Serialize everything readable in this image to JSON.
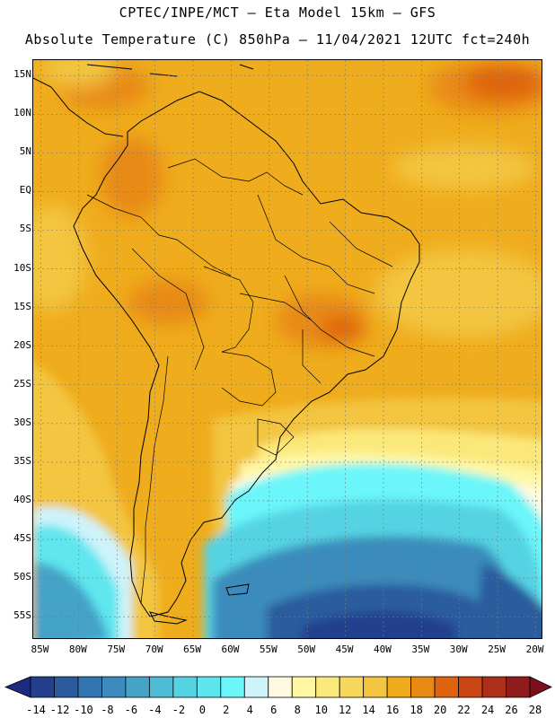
{
  "header": {
    "line1": "CPTEC/INPE/MCT –  Eta Model 15km – GFS",
    "line2": "Absolute Temperature (C) 850hPa – 11/04/2021 12UTC fct=240h"
  },
  "map": {
    "lon_range": [
      -86,
      -19
    ],
    "lat_range": [
      -58,
      17
    ],
    "lat_labels": [
      "15N",
      "10N",
      "5N",
      "EQ",
      "5S",
      "10S",
      "15S",
      "20S",
      "25S",
      "30S",
      "35S",
      "40S",
      "45S",
      "50S",
      "55S"
    ],
    "lat_values": [
      15,
      10,
      5,
      0,
      -5,
      -10,
      -15,
      -20,
      -25,
      -30,
      -35,
      -40,
      -45,
      -50,
      -55
    ],
    "lon_labels": [
      "85W",
      "80W",
      "75W",
      "70W",
      "65W",
      "60W",
      "55W",
      "50W",
      "45W",
      "40W",
      "35W",
      "30W",
      "25W",
      "20W"
    ],
    "lon_values": [
      -85,
      -80,
      -75,
      -70,
      -65,
      -60,
      -55,
      -50,
      -45,
      -40,
      -35,
      -30,
      -25,
      -20
    ],
    "grid": true
  },
  "colorbar": {
    "labels": [
      "-14",
      "-12",
      "-10",
      "-8",
      "-6",
      "-4",
      "-2",
      "0",
      "2",
      "4",
      "6",
      "8",
      "10",
      "12",
      "14",
      "16",
      "18",
      "20",
      "22",
      "24",
      "26",
      "28"
    ],
    "under_color": "#1c2a80",
    "over_color": "#7a0f1e",
    "colors": [
      "#22408e",
      "#2b5b9e",
      "#3174b0",
      "#3b8cbc",
      "#45a3c8",
      "#4fbcd6",
      "#55d3e3",
      "#5ee6ef",
      "#6bf6fa",
      "#cef3fb",
      "#fff9e2",
      "#fff7a6",
      "#fbe87a",
      "#f8d85c",
      "#f3c541",
      "#efac1c",
      "#e88a12",
      "#e0640f",
      "#cc4615",
      "#ad2e1a",
      "#8e1c1c"
    ]
  }
}
